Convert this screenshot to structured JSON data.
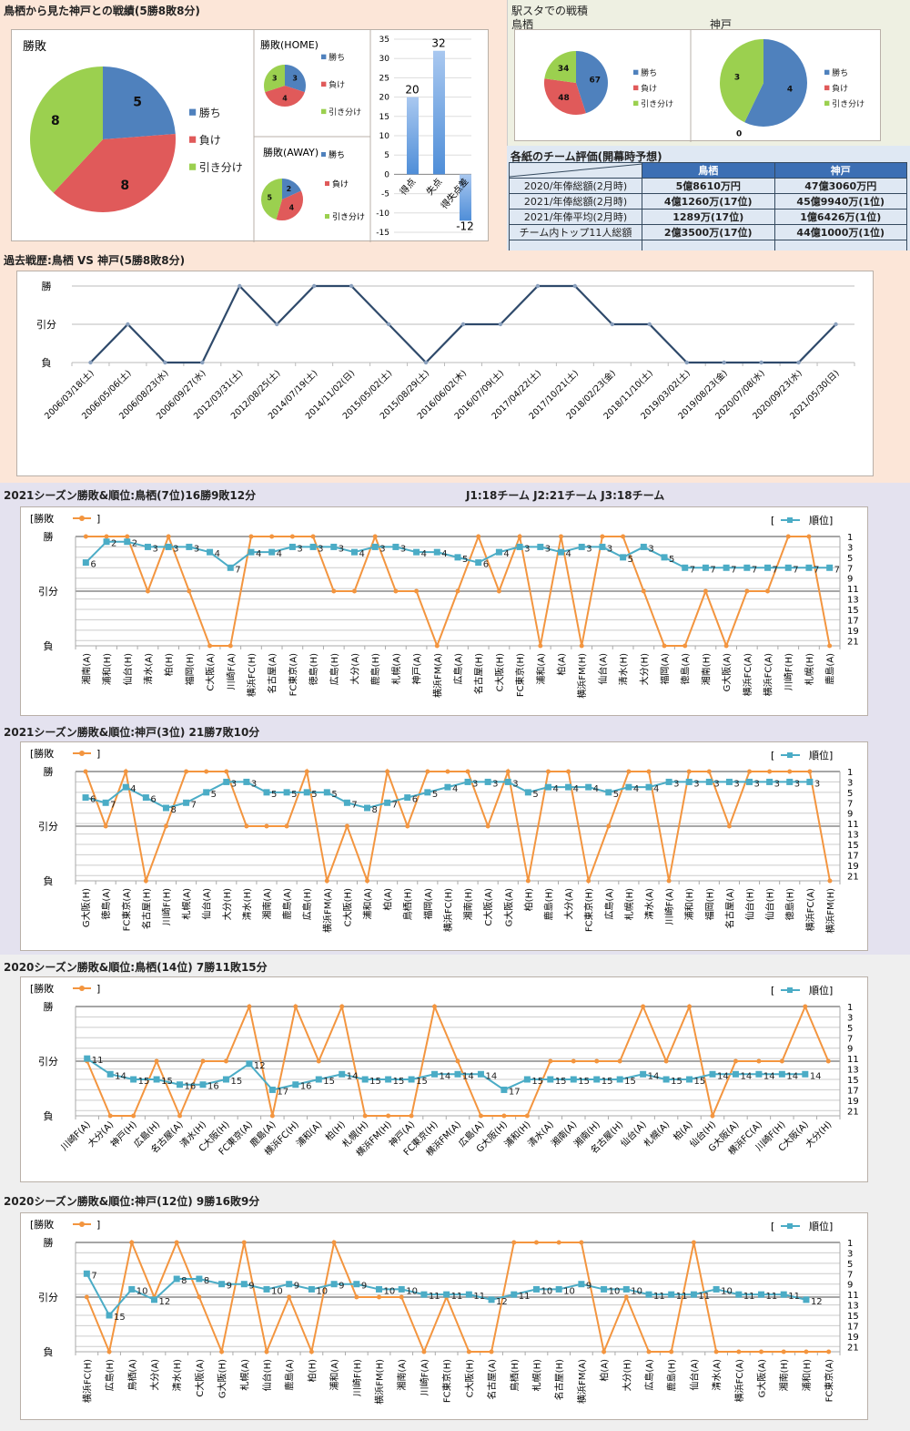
{
  "colors": {
    "win": "#4f81bd",
    "loss": "#e05a5a",
    "draw": "#9bd04f",
    "result_line": "#f3953f",
    "rank_line": "#4bacc6",
    "history_line": "#2f4a6b",
    "bar": "#4f8ed8",
    "table_header": "#3c6fb4"
  },
  "legend_labels": {
    "win": "勝ち",
    "loss": "負け",
    "draw": "引き分け"
  },
  "head_to_head": {
    "title": "鳥栖から見た神戸との戦績(5勝8敗8分)",
    "overall_pie": {
      "title": "勝敗",
      "win": 5,
      "loss": 8,
      "draw": 8
    },
    "home_pie": {
      "title": "勝敗(HOME)",
      "win": 3,
      "loss": 4,
      "draw": 3
    },
    "away_pie": {
      "title": "勝敗(AWAY)",
      "win": 2,
      "loss": 4,
      "draw": 5
    }
  },
  "chart_data": [
    {
      "type": "pie",
      "title": "勝敗",
      "categories": [
        "勝ち",
        "負け",
        "引き分け"
      ],
      "values": [
        5,
        8,
        8
      ]
    },
    {
      "type": "pie",
      "title": "勝敗(HOME)",
      "categories": [
        "勝ち",
        "負け",
        "引き分け"
      ],
      "values": [
        3,
        4,
        3
      ]
    },
    {
      "type": "pie",
      "title": "勝敗(AWAY)",
      "categories": [
        "勝ち",
        "負け",
        "引き分け"
      ],
      "values": [
        2,
        4,
        5
      ]
    },
    {
      "type": "bar",
      "title": "",
      "categories": [
        "得点",
        "失点",
        "得失点差"
      ],
      "values": [
        20,
        32,
        -12
      ],
      "ylim": [
        -15,
        35
      ],
      "yticks": [
        35,
        30,
        25,
        20,
        15,
        10,
        5,
        0,
        -5,
        -10,
        -15
      ]
    },
    {
      "type": "pie",
      "title": "駅スタでの戦積 鳥栖",
      "categories": [
        "勝ち",
        "負け",
        "引き分け"
      ],
      "values": [
        67,
        48,
        34
      ]
    },
    {
      "type": "pie",
      "title": "駅スタでの戦積 神戸",
      "categories": [
        "勝ち",
        "負け",
        "引き分け"
      ],
      "values": [
        4,
        0,
        3
      ]
    },
    {
      "type": "line",
      "title": "過去戦歴:鳥栖 VS 神戸(5勝8敗8分)",
      "y_labels": [
        "負",
        "引分",
        "勝"
      ],
      "x": [
        "2006/03/18(土)",
        "2006/05/06(土)",
        "2006/08/23(水)",
        "2006/09/27(水)",
        "2012/03/31(土)",
        "2012/08/25(土)",
        "2014/07/19(土)",
        "2014/11/02(日)",
        "2015/05/02(土)",
        "2015/08/29(土)",
        "2016/06/02(木)",
        "2016/07/09(土)",
        "2017/04/22(土)",
        "2017/10/21(土)",
        "2018/02/23(金)",
        "2018/11/10(土)",
        "2019/03/02(土)",
        "2019/08/23(金)",
        "2020/07/08(水)",
        "2020/09/23(水)",
        "2021/05/30(日)"
      ],
      "results": [
        "L",
        "D",
        "L",
        "L",
        "W",
        "D",
        "W",
        "W",
        "D",
        "L",
        "D",
        "D",
        "W",
        "W",
        "D",
        "D",
        "L",
        "L",
        "L",
        "L",
        "D"
      ]
    },
    {
      "type": "line",
      "title": "2021シーズン勝敗&順位:鳥栖(7位)16勝9敗12分",
      "legend": [
        "[勝敗",
        "]",
        "[",
        "順位]"
      ],
      "y_labels": [
        "勝",
        "引分",
        "負"
      ],
      "rank_ticks": [
        1,
        3,
        5,
        7,
        9,
        11,
        13,
        15,
        17,
        19,
        21
      ],
      "x": [
        "湘南(A)",
        "浦和(H)",
        "仙台(H)",
        "清水(A)",
        "柏(H)",
        "福岡(H)",
        "C大阪(A)",
        "川崎F(A)",
        "横浜FC(H)",
        "名古屋(A)",
        "FC東京(A)",
        "徳島(H)",
        "広島(H)",
        "大分(A)",
        "鹿島(H)",
        "札幌(A)",
        "神戸(A)",
        "横浜FM(A)",
        "広島(A)",
        "名古屋(H)",
        "C大阪(H)",
        "FC東京(H)",
        "浦和(A)",
        "柏(A)",
        "横浜FM(H)",
        "仙台(A)",
        "清水(H)",
        "大分(H)",
        "福岡(A)",
        "徳島(A)",
        "湘南(H)",
        "G大阪(A)",
        "横浜FC(A)",
        "横浜FC(A)",
        "川崎F(H)",
        "札幌(H)",
        "鹿島(A)"
      ],
      "results": [
        "W",
        "W",
        "W",
        "D",
        "W",
        "D",
        "L",
        "L",
        "W",
        "W",
        "W",
        "W",
        "D",
        "D",
        "W",
        "D",
        "D",
        "L",
        "D",
        "W",
        "D",
        "W",
        "L",
        "W",
        "L",
        "W",
        "W",
        "D",
        "L",
        "L",
        "D",
        "L",
        "D",
        "D",
        "W",
        "W",
        "L"
      ],
      "ranks": [
        6,
        2,
        2,
        3,
        3,
        3,
        4,
        7,
        4,
        4,
        3,
        3,
        3,
        4,
        3,
        3,
        4,
        4,
        5,
        6,
        4,
        3,
        3,
        4,
        3,
        3,
        5,
        3,
        5,
        7,
        7,
        7,
        7,
        7,
        7,
        7,
        7
      ]
    },
    {
      "type": "line",
      "title": "2021シーズン勝敗&順位:神戸(3位) 21勝7敗10分",
      "legend": [
        "[勝敗",
        "]",
        "[",
        "順位]"
      ],
      "y_labels": [
        "勝",
        "引分",
        "負"
      ],
      "rank_ticks": [
        1,
        3,
        5,
        7,
        9,
        11,
        13,
        15,
        17,
        19,
        21
      ],
      "x": [
        "G大阪(H)",
        "徳島(A)",
        "FC東京(A)",
        "名古屋(H)",
        "川崎F(H)",
        "札幌(A)",
        "仙台(A)",
        "大分(H)",
        "清水(H)",
        "湘南(A)",
        "鹿島(A)",
        "広島(H)",
        "横浜FM(A)",
        "C大阪(H)",
        "浦和(A)",
        "柏(A)",
        "鳥栖(H)",
        "福岡(A)",
        "横浜FC(H)",
        "湘南(H)",
        "C大阪(A)",
        "G大阪(A)",
        "柏(H)",
        "鹿島(H)",
        "大分(A)",
        "FC東京(H)",
        "広島(A)",
        "札幌(H)",
        "清水(A)",
        "川崎F(A)",
        "浦和(H)",
        "福岡(H)",
        "名古屋(A)",
        "仙台(H)",
        "仙台(H)",
        "徳島(H)",
        "横浜FC(A)",
        "横浜FM(H)"
      ],
      "results": [
        "W",
        "D",
        "W",
        "L",
        "D",
        "W",
        "W",
        "W",
        "D",
        "D",
        "D",
        "W",
        "L",
        "D",
        "L",
        "W",
        "D",
        "W",
        "W",
        "W",
        "D",
        "W",
        "L",
        "W",
        "W",
        "L",
        "D",
        "W",
        "W",
        "L",
        "W",
        "W",
        "D",
        "W",
        "W",
        "W",
        "W",
        "L"
      ],
      "ranks": [
        6,
        7,
        4,
        6,
        8,
        7,
        5,
        3,
        3,
        5,
        5,
        5,
        5,
        7,
        8,
        7,
        6,
        5,
        4,
        3,
        3,
        3,
        5,
        4,
        4,
        4,
        5,
        4,
        4,
        3,
        3,
        3,
        3,
        3,
        3,
        3,
        3,
        null
      ]
    },
    {
      "type": "line",
      "title": "2020シーズン勝敗&順位:鳥栖(14位) 7勝11敗15分",
      "legend": [
        "[勝敗",
        "]",
        "[",
        "順位]"
      ],
      "y_labels": [
        "勝",
        "引分",
        "負"
      ],
      "rank_ticks": [
        1,
        3,
        5,
        7,
        9,
        11,
        13,
        15,
        17,
        19,
        21
      ],
      "x": [
        "川崎F(A)",
        "大分(A)",
        "神戸(H)",
        "広島(H)",
        "名古屋(A)",
        "清水(H)",
        "C大阪(H)",
        "FC東京(A)",
        "鹿島(A)",
        "横浜FC(H)",
        "浦和(A)",
        "柏(H)",
        "札幌(H)",
        "横浜FM(H)",
        "神戸(A)",
        "FC東京(H)",
        "横浜FM(A)",
        "広島(A)",
        "G大阪(H)",
        "浦和(H)",
        "清水(A)",
        "湘南(A)",
        "湘南(H)",
        "名古屋(H)",
        "仙台(A)",
        "札幌(A)",
        "柏(A)",
        "仙台(H)",
        "G大阪(A)",
        "横浜FC(A)",
        "川崎F(H)",
        "C大阪(A)",
        "大分(H)"
      ],
      "results": [
        "D",
        "L",
        "L",
        "D",
        "L",
        "D",
        "D",
        "W",
        "L",
        "W",
        "D",
        "W",
        "L",
        "L",
        "L",
        "W",
        "D",
        "L",
        "L",
        "L",
        "D",
        "D",
        "D",
        "D",
        "W",
        "D",
        "W",
        "L",
        "D",
        "D",
        "D",
        "W",
        "D"
      ],
      "ranks": [
        11,
        14,
        15,
        15,
        16,
        16,
        15,
        12,
        17,
        16,
        15,
        14,
        15,
        15,
        15,
        14,
        14,
        14,
        17,
        15,
        15,
        15,
        15,
        15,
        14,
        15,
        15,
        14,
        14,
        14,
        14,
        14,
        null
      ]
    },
    {
      "type": "line",
      "title": "2020シーズン勝敗&順位:神戸(12位) 9勝16敗9分",
      "legend": [
        "[勝敗",
        "]",
        "[",
        "順位]"
      ],
      "y_labels": [
        "勝",
        "引分",
        "負"
      ],
      "rank_ticks": [
        1,
        3,
        5,
        7,
        9,
        11,
        13,
        15,
        17,
        19,
        21
      ],
      "x": [
        "横浜FC(H)",
        "広島(H)",
        "鳥栖(A)",
        "大分(A)",
        "清水(H)",
        "C大阪(A)",
        "G大阪(H)",
        "札幌(A)",
        "仙台(H)",
        "鹿島(A)",
        "柏(H)",
        "浦和(A)",
        "川崎F(H)",
        "横浜FM(H)",
        "湘南(A)",
        "川崎F(A)",
        "FC東京(H)",
        "C大阪(H)",
        "名古屋(A)",
        "鳥栖(H)",
        "札幌(H)",
        "名古屋(H)",
        "横浜FM(A)",
        "柏(A)",
        "大分(H)",
        "広島(A)",
        "鹿島(H)",
        "仙台(A)",
        "清水(A)",
        "横浜FC(A)",
        "G大阪(A)",
        "湘南(H)",
        "浦和(H)",
        "FC東京(A)"
      ],
      "results": [
        "D",
        "L",
        "W",
        "D",
        "W",
        "D",
        "L",
        "W",
        "L",
        "D",
        "L",
        "W",
        "D",
        "D",
        "D",
        "L",
        "D",
        "L",
        "L",
        "W",
        "W",
        "W",
        "W",
        "L",
        "D",
        "L",
        "L",
        "W",
        "L",
        "L",
        "L",
        "L",
        "L",
        "L"
      ],
      "ranks": [
        7,
        15,
        10,
        12,
        8,
        8,
        9,
        9,
        10,
        9,
        10,
        9,
        9,
        10,
        10,
        11,
        11,
        11,
        12,
        11,
        10,
        10,
        9,
        10,
        10,
        11,
        11,
        11,
        10,
        11,
        11,
        11,
        12,
        null
      ]
    }
  ],
  "station": {
    "title": "駅スタでの戦積",
    "tosu_label": "鳥栖",
    "kobe_label": "神戸",
    "tosu_pie": {
      "win": 67,
      "loss": 48,
      "draw": 34
    },
    "kobe_pie": {
      "win": 4,
      "loss": 0,
      "draw": 3
    }
  },
  "evaluation": {
    "title": "各紙のチーム評価(開幕時予想)",
    "headers": [
      "",
      "鳥栖",
      "神戸"
    ],
    "rows": [
      {
        "label": "2020/年俸総額(2月時)",
        "tosu": "5億8610万円",
        "kobe": "47億3060万円"
      },
      {
        "label": "2021/年俸総額(2月時)",
        "tosu": "4億1260万(17位)",
        "kobe": "45億9940万(1位)"
      },
      {
        "label": "2021/年俸平均(2月時)",
        "tosu": "1289万(17位)",
        "kobe": "1億6426万(1位)"
      },
      {
        "label": "チーム内トップ11人総額",
        "tosu": "2億3500万(17位)",
        "kobe": "44億1000万(1位)"
      },
      {
        "label": "",
        "tosu": "",
        "kobe": ""
      }
    ]
  },
  "league_info": "J1:18チーム J2:21チーム J3:18チーム"
}
